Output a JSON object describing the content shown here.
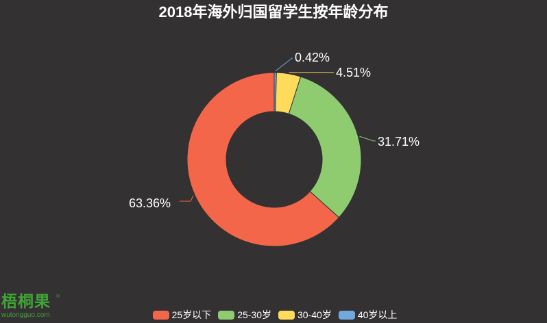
{
  "chart_data": {
    "type": "pie",
    "variant": "donut",
    "title": "2018年海外归国留学生按年龄分布",
    "categories": [
      "25岁以下",
      "25-30岁",
      "30-40岁",
      "40岁以上"
    ],
    "values": [
      63.36,
      31.71,
      4.51,
      0.42
    ],
    "value_labels": [
      "63.36%",
      "31.71%",
      "4.51%",
      "0.42%"
    ],
    "colors": [
      "#f4664a",
      "#8fcb6f",
      "#fedb5b",
      "#73a8dc"
    ],
    "legend_position": "bottom-center",
    "label_color": "#ffffff",
    "background": "#333132"
  },
  "logo": {
    "name": "梧桐果",
    "registered": "®",
    "url_text": "wutongguo.com",
    "color": "#3fa535"
  }
}
